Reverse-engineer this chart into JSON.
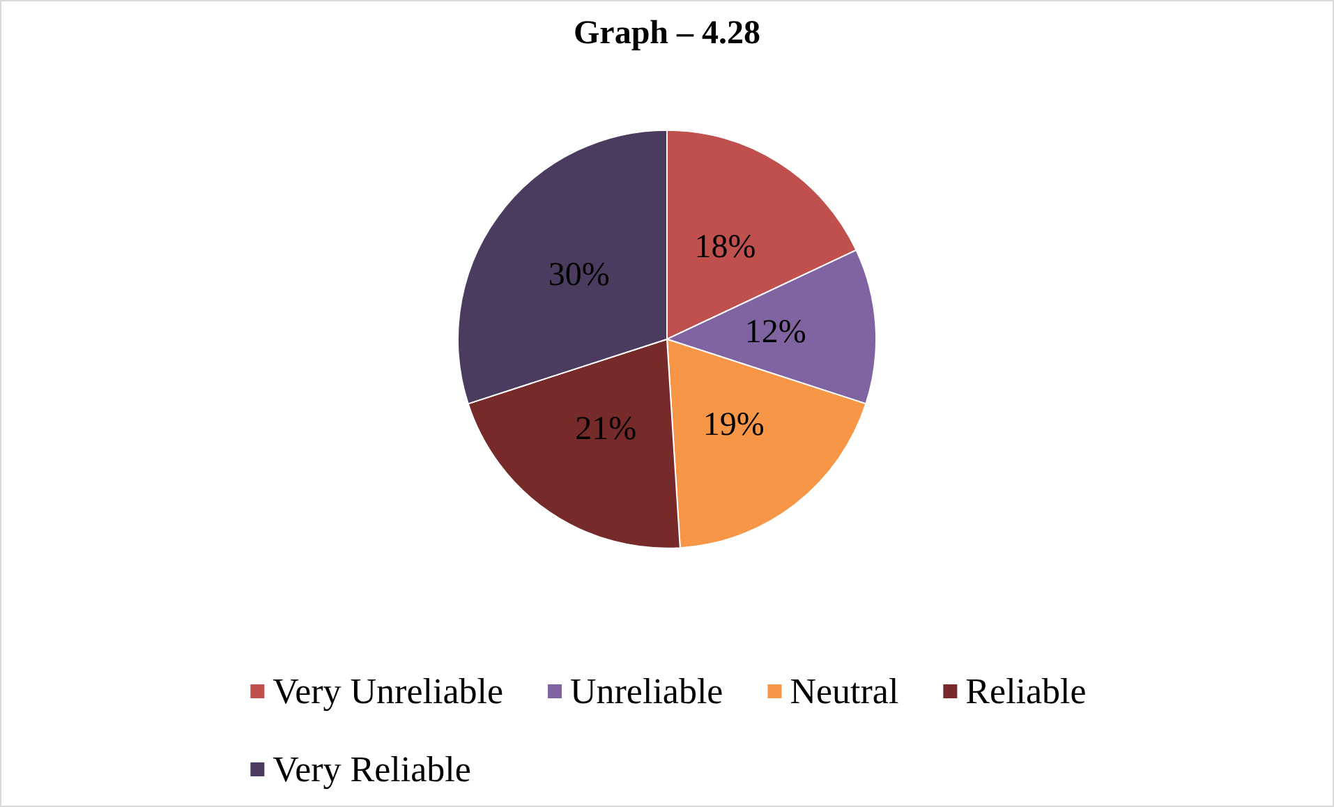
{
  "chart_data": {
    "type": "pie",
    "title": "Graph – 4.28",
    "categories": [
      "Very Unreliable",
      "Unreliable",
      "Neutral",
      "Reliable",
      "Very Reliable"
    ],
    "values": [
      18,
      12,
      19,
      21,
      30
    ],
    "colors": [
      "#c0504d",
      "#8064a2",
      "#f79646",
      "#772a2a",
      "#4a3b5f"
    ],
    "value_labels": [
      "18%",
      "12%",
      "19%",
      "21%",
      "30%"
    ],
    "legend": "bottom"
  }
}
